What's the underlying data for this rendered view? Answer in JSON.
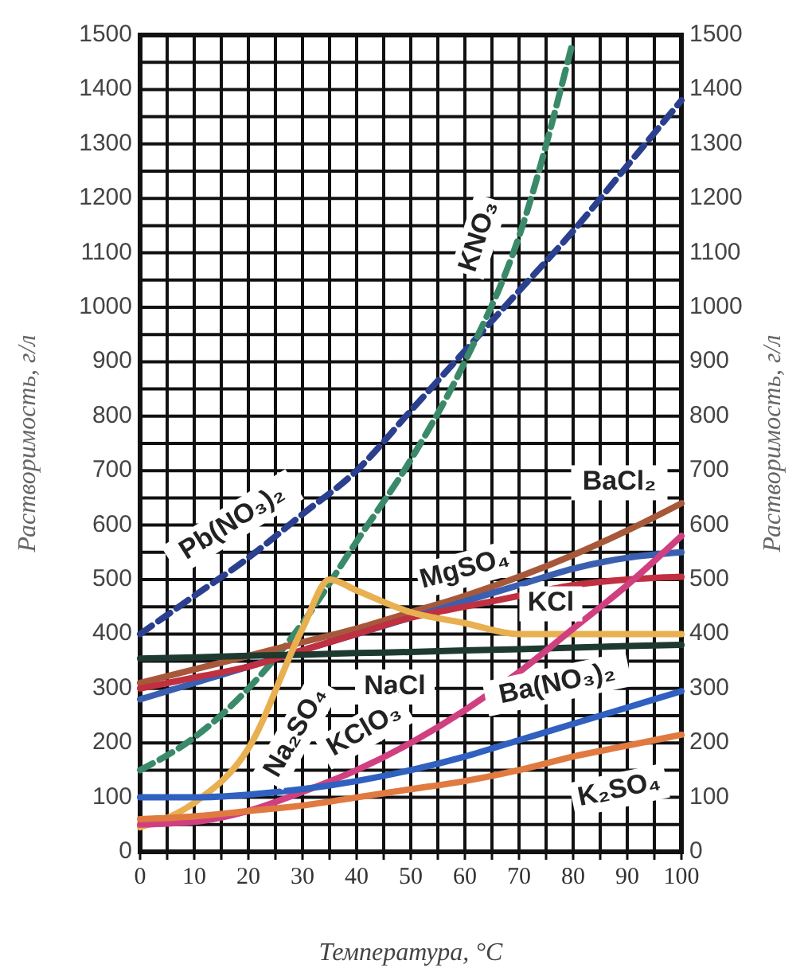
{
  "chart_data": {
    "type": "line",
    "xlabel": "Температура, °C",
    "ylabel": "Растворимость, г/л",
    "y2label": "Растворимость, г/л",
    "x": [
      0,
      10,
      20,
      30,
      40,
      50,
      60,
      70,
      80,
      90,
      100
    ],
    "xlim": [
      0,
      100
    ],
    "xticks": [
      0,
      {
        "value": 5,
        "label": null
      },
      10,
      {
        "value": 15,
        "label": null
      },
      20,
      {
        "value": 25,
        "label": null
      },
      30,
      {
        "value": 35,
        "label": null
      },
      40,
      {
        "value": 45,
        "label": null
      },
      50,
      {
        "value": 55,
        "label": null
      },
      60,
      {
        "value": 65,
        "label": null
      },
      70,
      {
        "value": 75,
        "label": null
      },
      80,
      {
        "value": 85,
        "label": null
      },
      90,
      {
        "value": 95,
        "label": null
      },
      100
    ],
    "ylim": [
      0,
      1500
    ],
    "yticks": [
      0,
      {
        "value": 50,
        "label": null
      },
      100,
      {
        "value": 150,
        "label": null
      },
      200,
      {
        "value": 250,
        "label": null
      },
      300,
      {
        "value": 350,
        "label": null
      },
      400,
      {
        "value": 450,
        "label": null
      },
      500,
      {
        "value": 550,
        "label": null
      },
      600,
      {
        "value": 650,
        "label": null
      },
      700,
      {
        "value": 750,
        "label": null
      },
      800,
      {
        "value": 850,
        "label": null
      },
      900,
      {
        "value": 950,
        "label": null
      },
      1000,
      {
        "value": 1050,
        "label": null
      },
      1100,
      {
        "value": 1150,
        "label": null
      },
      1200,
      {
        "value": 1250,
        "label": null
      },
      1300,
      {
        "value": 1350,
        "label": null
      },
      1400,
      {
        "value": 1450,
        "label": null
      },
      1500
    ],
    "y2lim": [
      0,
      1500
    ],
    "y2ticks": [
      0,
      100,
      200,
      300,
      400,
      500,
      600,
      700,
      800,
      900,
      1000,
      1100,
      1200,
      1300,
      1400,
      1500
    ],
    "grid": true,
    "series": [
      {
        "name": "Pb(NO₃)₂",
        "color": "#2b3f8f",
        "line_style": "dashed",
        "values": [
          400,
          470,
          540,
          620,
          700,
          810,
          920,
          1030,
          1140,
          1260,
          1380
        ]
      },
      {
        "name": "KNO₃",
        "color": "#3a8a6a",
        "line_style": "dashed",
        "x": [
          0,
          10,
          20,
          30,
          40,
          50,
          60,
          70,
          80
        ],
        "values": [
          150,
          210,
          300,
          420,
          570,
          720,
          900,
          1130,
          1490
        ]
      },
      {
        "name": "BaCl₂",
        "color": "#a8583a",
        "values": [
          310,
          335,
          360,
          385,
          410,
          440,
          470,
          505,
          545,
          590,
          640
        ]
      },
      {
        "name": "MgSO₄",
        "color": "#3a5fb0",
        "values": [
          280,
          310,
          340,
          370,
          400,
          430,
          460,
          490,
          520,
          540,
          550
        ]
      },
      {
        "name": "KCl",
        "color": "#c03040",
        "values": [
          300,
          320,
          340,
          370,
          400,
          430,
          450,
          470,
          490,
          500,
          505
        ]
      },
      {
        "name": "NaCl",
        "color": "#1e3a30",
        "values": [
          355,
          357,
          360,
          362,
          365,
          367,
          370,
          372,
          375,
          378,
          380
        ]
      },
      {
        "name": "Na₂SO₄",
        "color": "#e8b050",
        "x": [
          0,
          10,
          20,
          30,
          35,
          40,
          50,
          60,
          70,
          80,
          90,
          100
        ],
        "values": [
          45,
          90,
          190,
          410,
          500,
          480,
          440,
          420,
          400,
          400,
          400,
          400
        ]
      },
      {
        "name": "KClO₃",
        "color": "#d04080",
        "values": [
          50,
          55,
          75,
          110,
          150,
          200,
          260,
          330,
          410,
          490,
          580
        ]
      },
      {
        "name": "Ba(NO₃)₂",
        "color": "#3060c0",
        "values": [
          100,
          100,
          105,
          115,
          130,
          150,
          175,
          205,
          235,
          265,
          295
        ]
      },
      {
        "name": "K₂SO₄",
        "color": "#e07a40",
        "values": [
          60,
          65,
          75,
          85,
          100,
          115,
          130,
          150,
          175,
          195,
          215
        ]
      }
    ]
  }
}
